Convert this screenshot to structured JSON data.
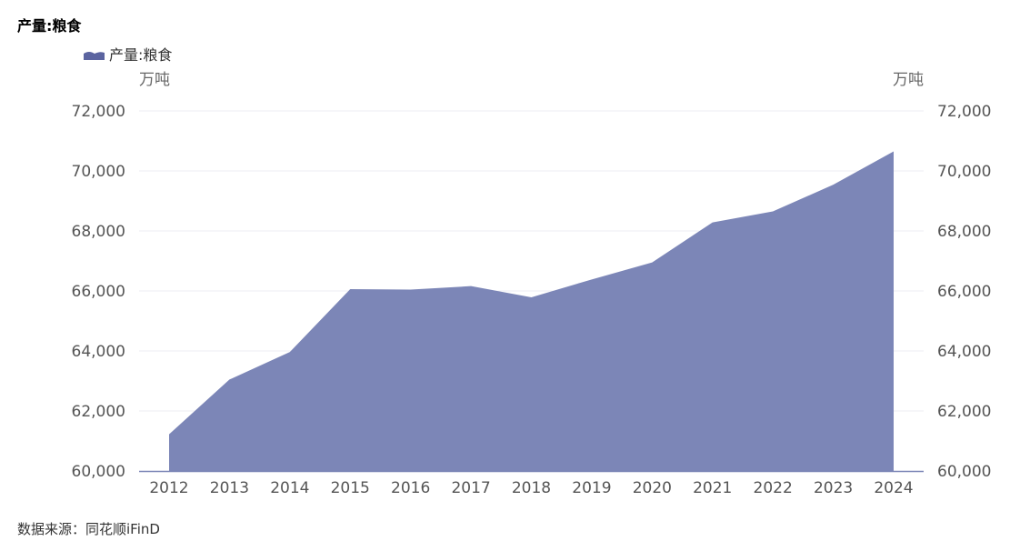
{
  "page": {
    "title": "产量:粮食",
    "source": "数据来源：同花顺iFinD"
  },
  "chart_data": {
    "type": "area",
    "title": "产量:粮食",
    "unit_left": "万吨",
    "unit_right": "万吨",
    "categories": [
      "2012",
      "2013",
      "2014",
      "2015",
      "2016",
      "2017",
      "2018",
      "2019",
      "2020",
      "2021",
      "2022",
      "2023",
      "2024"
    ],
    "series": [
      {
        "name": "产量:粮食",
        "color": "#7c86b7",
        "values": [
          61223,
          63048,
          63965,
          66060,
          66044,
          66161,
          65789,
          66384,
          66949,
          68285,
          68653,
          69541,
          70650
        ]
      }
    ],
    "ylim": [
      60000,
      72000
    ],
    "yticks": [
      60000,
      62000,
      64000,
      66000,
      68000,
      70000,
      72000
    ],
    "ytick_labels": [
      "60,000",
      "62,000",
      "64,000",
      "66,000",
      "68,000",
      "70,000",
      "72,000"
    ],
    "legend_position": "top-left",
    "grid": true
  }
}
